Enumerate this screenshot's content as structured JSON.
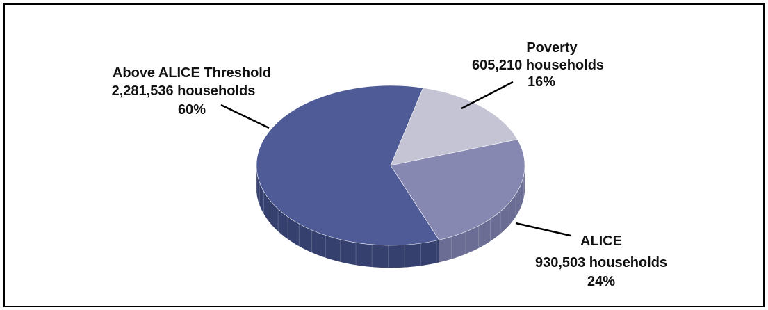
{
  "chart_data": {
    "type": "pie",
    "title": "",
    "slices": [
      {
        "label": "Poverty",
        "value": 605210,
        "value_text": "605,210 households",
        "percent_text": "16%",
        "color": "#c4c4d4",
        "side": "#9c9cae"
      },
      {
        "label": "ALICE",
        "value": 930503,
        "value_text": "930,503 households",
        "percent_text": "24%",
        "color": "#8688b2",
        "side": "#6b6d94"
      },
      {
        "label": "Above ALICE Threshold",
        "value": 2281536,
        "value_text": "2,281,536 households",
        "percent_text": "60%",
        "color": "#4e5b96",
        "side": "#36406e"
      }
    ],
    "legend": "none",
    "style": "3d-pie"
  }
}
